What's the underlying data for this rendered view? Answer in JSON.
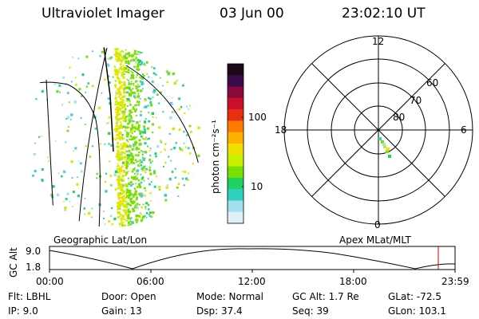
{
  "header": {
    "title": "Ultraviolet Imager",
    "date": "03 Jun 00",
    "time": "23:02:10 UT"
  },
  "colorbar": {
    "label": "photon cm⁻²s⁻¹",
    "ticks": [
      "100",
      "10"
    ],
    "scale": "log",
    "colors": [
      "#1a0a1a",
      "#3a0a4a",
      "#8a0a3a",
      "#c8102a",
      "#e83010",
      "#ff7a00",
      "#ffb000",
      "#f0e000",
      "#c8f000",
      "#78e000",
      "#20d060",
      "#30d0c0",
      "#a0e0f0",
      "#e0f0f8"
    ]
  },
  "labels": {
    "geo_title": "Geographic Lat/Lon",
    "apex_title": "Apex MLat/MLT"
  },
  "polar_plot": {
    "mlt_labels": [
      "12",
      "18",
      "6",
      "0"
    ],
    "lat_labels": [
      "60",
      "70",
      "80"
    ]
  },
  "timeline": {
    "ylabel": "GC Alt",
    "ytick_top": "9.0",
    "ytick_bottom": "1.8",
    "xticks": [
      "00:00",
      "06:00",
      "12:00",
      "18:00",
      "23:59"
    ],
    "marker_color": "#cc0000"
  },
  "info": {
    "flt": "Flt: LBHL",
    "ip": "IP:  9.0",
    "door": "Door: Open",
    "gain": "Gain: 13",
    "mode": "Mode: Normal",
    "dsp": "Dsp:    37.4",
    "gcalt": "GC Alt: 1.7 Re",
    "seq": "Seq: 39",
    "glat": "GLat: -72.5",
    "glon": "GLon: 103.1"
  }
}
